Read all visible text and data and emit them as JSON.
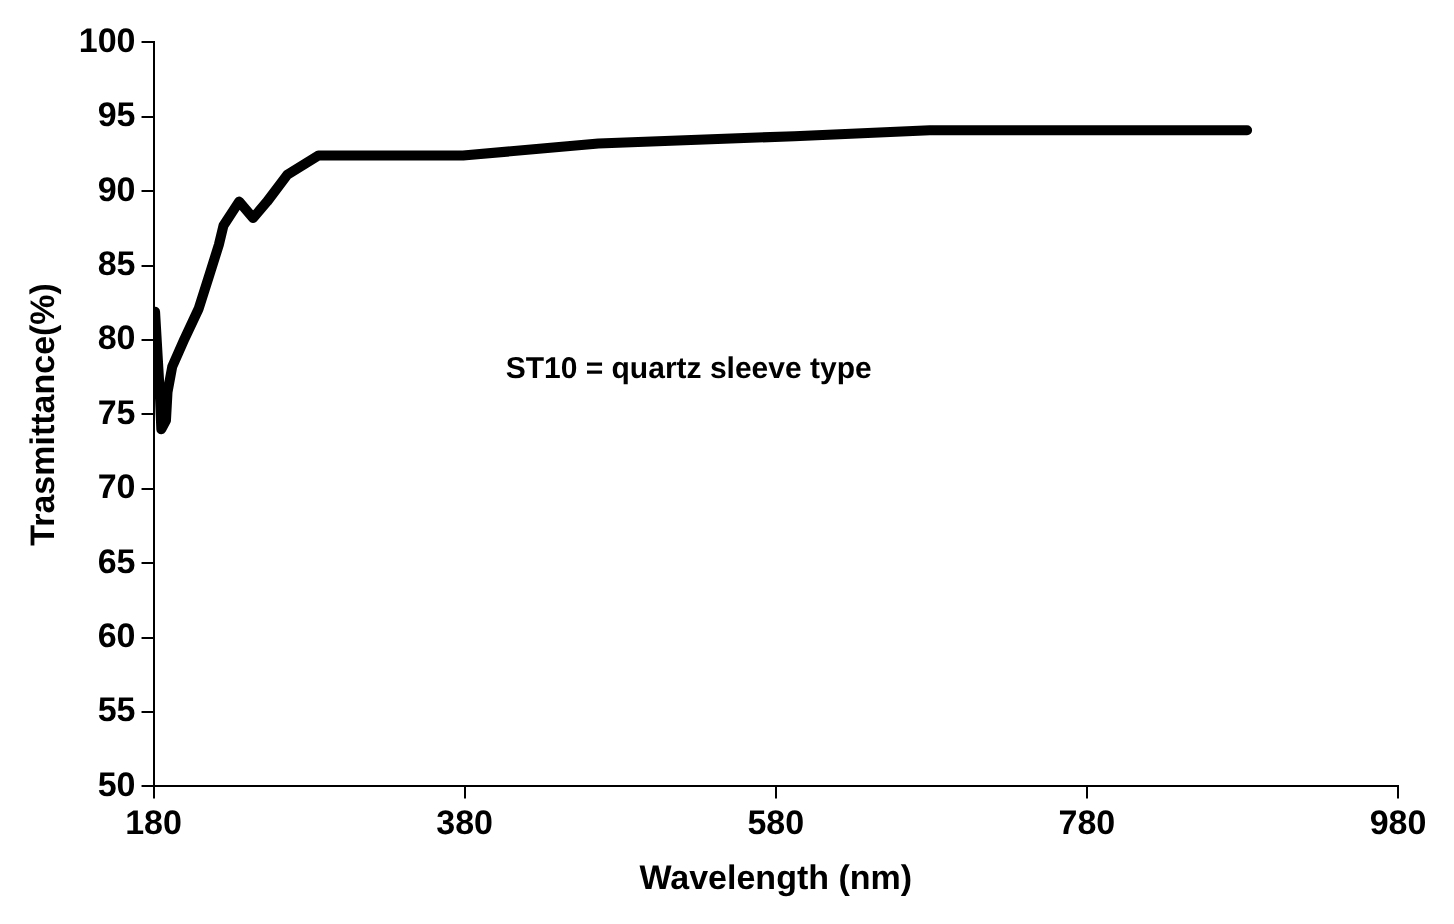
{
  "chart_data": {
    "type": "line",
    "xlabel": "Wavelength (nm)",
    "ylabel": "Trasmittance(%)",
    "annotations": [
      "ST10 = quartz sleeve type"
    ],
    "x": [
      181,
      184,
      185,
      188,
      189,
      192,
      200,
      209,
      216,
      222,
      225,
      235,
      244,
      253,
      266,
      286,
      379,
      466,
      592,
      679,
      883
    ],
    "series": [
      {
        "color": "#000000",
        "values": [
          81.9,
          76.5,
          74.0,
          74.6,
          76.5,
          78.2,
          80.1,
          82.1,
          84.4,
          86.4,
          87.7,
          89.3,
          88.2,
          89.3,
          91.1,
          92.4,
          92.4,
          93.2,
          93.7,
          94.1,
          94.1
        ]
      }
    ],
    "xlim": [
      180,
      980
    ],
    "xticks": [
      180,
      380,
      580,
      780,
      980
    ],
    "ylim": [
      50,
      100
    ],
    "yticks": [
      50,
      55,
      60,
      65,
      70,
      75,
      80,
      85,
      90,
      95,
      100
    ],
    "grid": false,
    "legend": false,
    "marker": "none",
    "line_style": "solid"
  }
}
